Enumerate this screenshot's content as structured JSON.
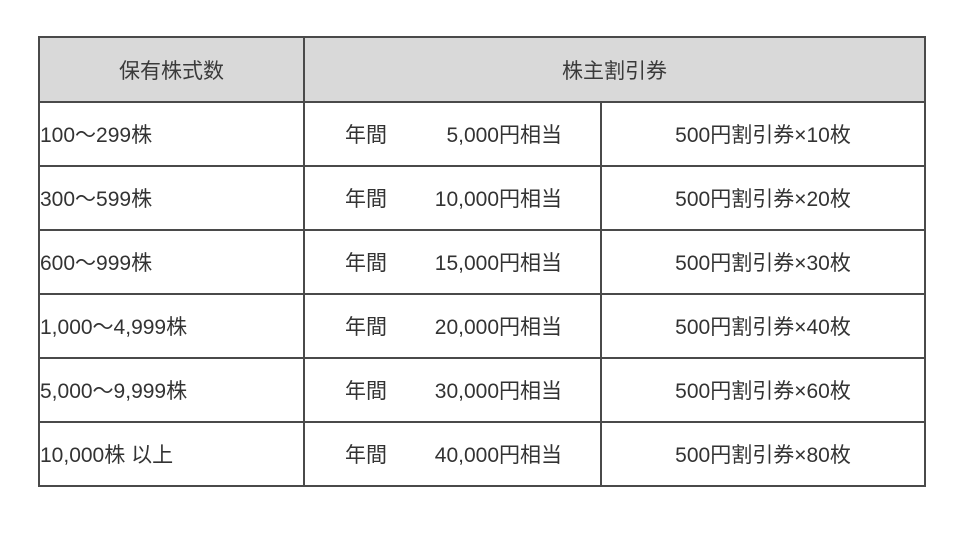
{
  "table": {
    "header": {
      "shares_col": "保有株式数",
      "coupon_col": "株主割引券"
    },
    "rows": [
      {
        "shares": "100〜299株",
        "annual_label": "年間",
        "annual_value": "5,000円相当",
        "coupons": "500円割引券×10枚"
      },
      {
        "shares": "300〜599株",
        "annual_label": "年間",
        "annual_value": "10,000円相当",
        "coupons": "500円割引券×20枚"
      },
      {
        "shares": "600〜999株",
        "annual_label": "年間",
        "annual_value": "15,000円相当",
        "coupons": "500円割引券×30枚"
      },
      {
        "shares": "1,000〜4,999株",
        "annual_label": "年間",
        "annual_value": "20,000円相当",
        "coupons": "500円割引券×40枚"
      },
      {
        "shares": "5,000〜9,999株",
        "annual_label": "年間",
        "annual_value": "30,000円相当",
        "coupons": "500円割引券×60枚"
      },
      {
        "shares": "10,000株 以上",
        "annual_label": "年間",
        "annual_value": "40,000円相当",
        "coupons": "500円割引券×80枚"
      }
    ],
    "colors": {
      "header_bg": "#d9d9d9",
      "border": "#4a4a4a",
      "text": "#333333",
      "page_bg": "#ffffff"
    }
  }
}
